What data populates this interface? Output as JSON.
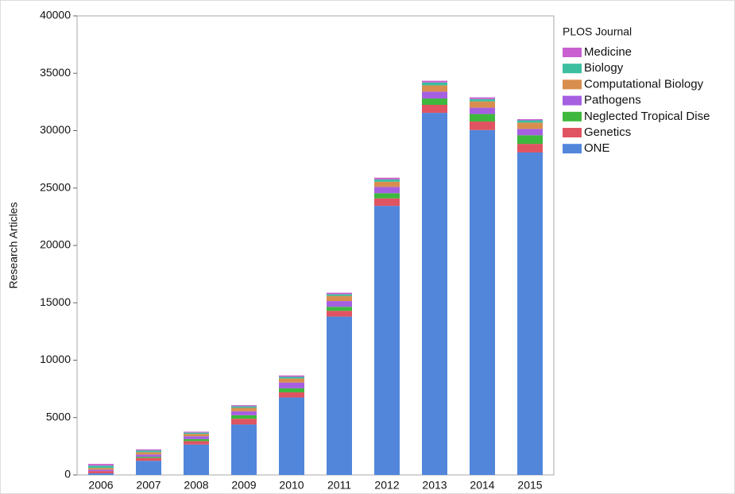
{
  "chart_data": {
    "type": "stacked_bar",
    "y_label": "Research Articles",
    "legend_title": "PLOS Journal",
    "categories": [
      "2006",
      "2007",
      "2008",
      "2009",
      "2010",
      "2011",
      "2012",
      "2013",
      "2014",
      "2015"
    ],
    "series": [
      {
        "name": "ONE",
        "color": "#5186db",
        "values": [
          140,
          1230,
          2650,
          4400,
          6750,
          13800,
          23450,
          31550,
          30050,
          28100
        ]
      },
      {
        "name": "Genetics",
        "color": "#e05462",
        "values": [
          200,
          250,
          300,
          500,
          450,
          500,
          650,
          700,
          750,
          750
        ]
      },
      {
        "name": "Neglected Tropical Dise",
        "color": "#3db83d",
        "values": [
          0,
          100,
          170,
          300,
          350,
          350,
          450,
          550,
          650,
          750
        ]
      },
      {
        "name": "Pathogens",
        "color": "#a55fe0",
        "values": [
          120,
          200,
          250,
          350,
          500,
          500,
          550,
          600,
          550,
          550
        ]
      },
      {
        "name": "Computational Biology",
        "color": "#d88e4f",
        "values": [
          150,
          200,
          200,
          300,
          350,
          450,
          450,
          550,
          550,
          550
        ]
      },
      {
        "name": "Biology",
        "color": "#3bbf9f",
        "values": [
          200,
          150,
          120,
          130,
          150,
          150,
          200,
          250,
          200,
          200
        ]
      },
      {
        "name": "Medicine",
        "color": "#c95fd0",
        "values": [
          150,
          100,
          80,
          100,
          120,
          130,
          150,
          150,
          150,
          100
        ]
      }
    ],
    "ylim": [
      0,
      40000
    ],
    "yticks": [
      0,
      5000,
      10000,
      15000,
      20000,
      25000,
      30000,
      35000,
      40000
    ],
    "legend": "right"
  }
}
